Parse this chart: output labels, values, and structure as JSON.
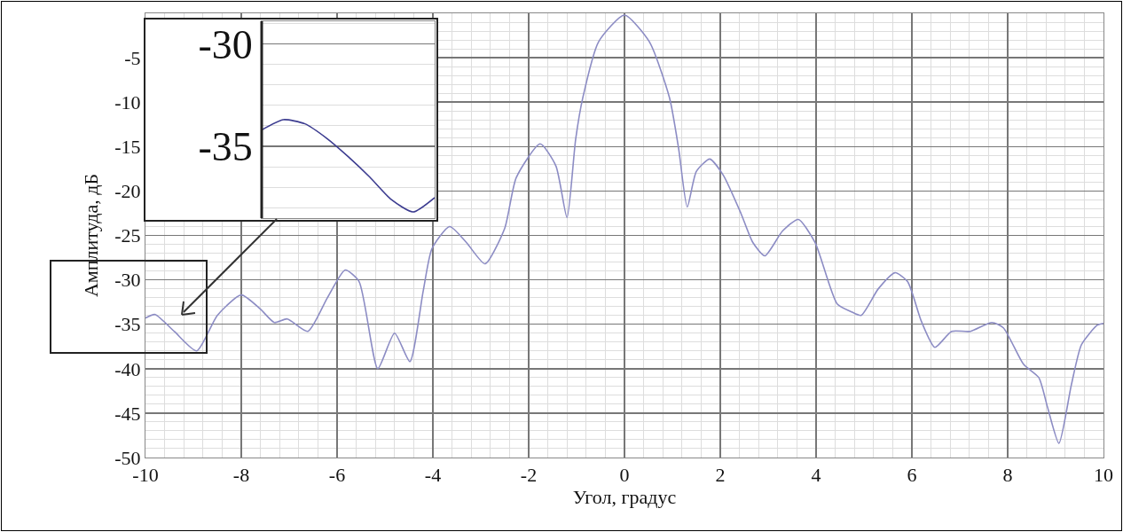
{
  "chart_data": [
    {
      "type": "line",
      "xlabel": "Угол, градус",
      "ylabel": "Амплитуда, дБ",
      "x": [
        -10,
        -9.8,
        -9.4,
        -8.93,
        -8.5,
        -8.0,
        -7.6,
        -7.31,
        -7.04,
        -6.61,
        -6.2,
        -5.83,
        -5.54,
        -5.15,
        -4.8,
        -4.48,
        -4.2,
        -4.02,
        -3.65,
        -3.3,
        -2.91,
        -2.5,
        -2.26,
        -1.76,
        -1.43,
        -1.2,
        -1.02,
        -0.87,
        -0.54,
        0,
        0.52,
        0.94,
        1.13,
        1.31,
        1.5,
        1.78,
        2.06,
        2.43,
        2.68,
        2.93,
        3.3,
        3.63,
        3.98,
        4.44,
        4.74,
        4.94,
        5.3,
        5.65,
        5.91,
        6.2,
        6.48,
        6.83,
        7.22,
        7.67,
        7.91,
        8.33,
        8.65,
        8.83,
        9.07,
        9.33,
        9.54,
        9.87,
        10
      ],
      "series": [
        {
          "color": "#8c8cc4",
          "values": [
            -34.3,
            -33.9,
            -35.8,
            -38.0,
            -34.0,
            -31.7,
            -33.3,
            -34.8,
            -34.4,
            -35.8,
            -32.0,
            -28.9,
            -30.2,
            -40.0,
            -36.0,
            -39.2,
            -31.2,
            -26.5,
            -24.0,
            -25.8,
            -28.2,
            -24.2,
            -18.5,
            -14.7,
            -17.2,
            -23.0,
            -14.2,
            -9.5,
            -3.2,
            -0.2,
            -3.2,
            -9.5,
            -15.2,
            -21.8,
            -17.8,
            -16.4,
            -18.2,
            -22.5,
            -25.8,
            -27.3,
            -24.5,
            -23.2,
            -25.8,
            -32.7,
            -33.6,
            -34.0,
            -31.0,
            -29.2,
            -30.2,
            -34.7,
            -37.6,
            -35.8,
            -35.8,
            -34.8,
            -35.4,
            -39.5,
            -41.0,
            -44.3,
            -48.4,
            -41.8,
            -37.3,
            -35.1,
            -34.9
          ]
        }
      ],
      "xlim": [
        -10,
        10
      ],
      "xticks": [
        -10,
        -8,
        -6,
        -4,
        -2,
        0,
        2,
        4,
        6,
        8,
        10
      ],
      "ylim": [
        -50,
        0
      ],
      "yticks": [
        -5,
        -10,
        -15,
        -20,
        -25,
        -30,
        -35,
        -40,
        -45,
        -50
      ],
      "grid": true
    },
    {
      "type": "line",
      "categories": [
        null,
        null,
        null,
        null,
        null,
        null,
        null,
        null,
        null
      ],
      "series": [
        {
          "color": "#3c3c90",
          "values": [
            -34.2,
            -33.7,
            -33.9,
            -34.6,
            -35.5,
            -36.5,
            -37.6,
            -38.2,
            -37.5
          ]
        }
      ],
      "ylim": [
        -38.5,
        -28.9
      ],
      "yticks": [
        -30,
        -35
      ],
      "grid": "y",
      "tick_labels": "y"
    }
  ]
}
